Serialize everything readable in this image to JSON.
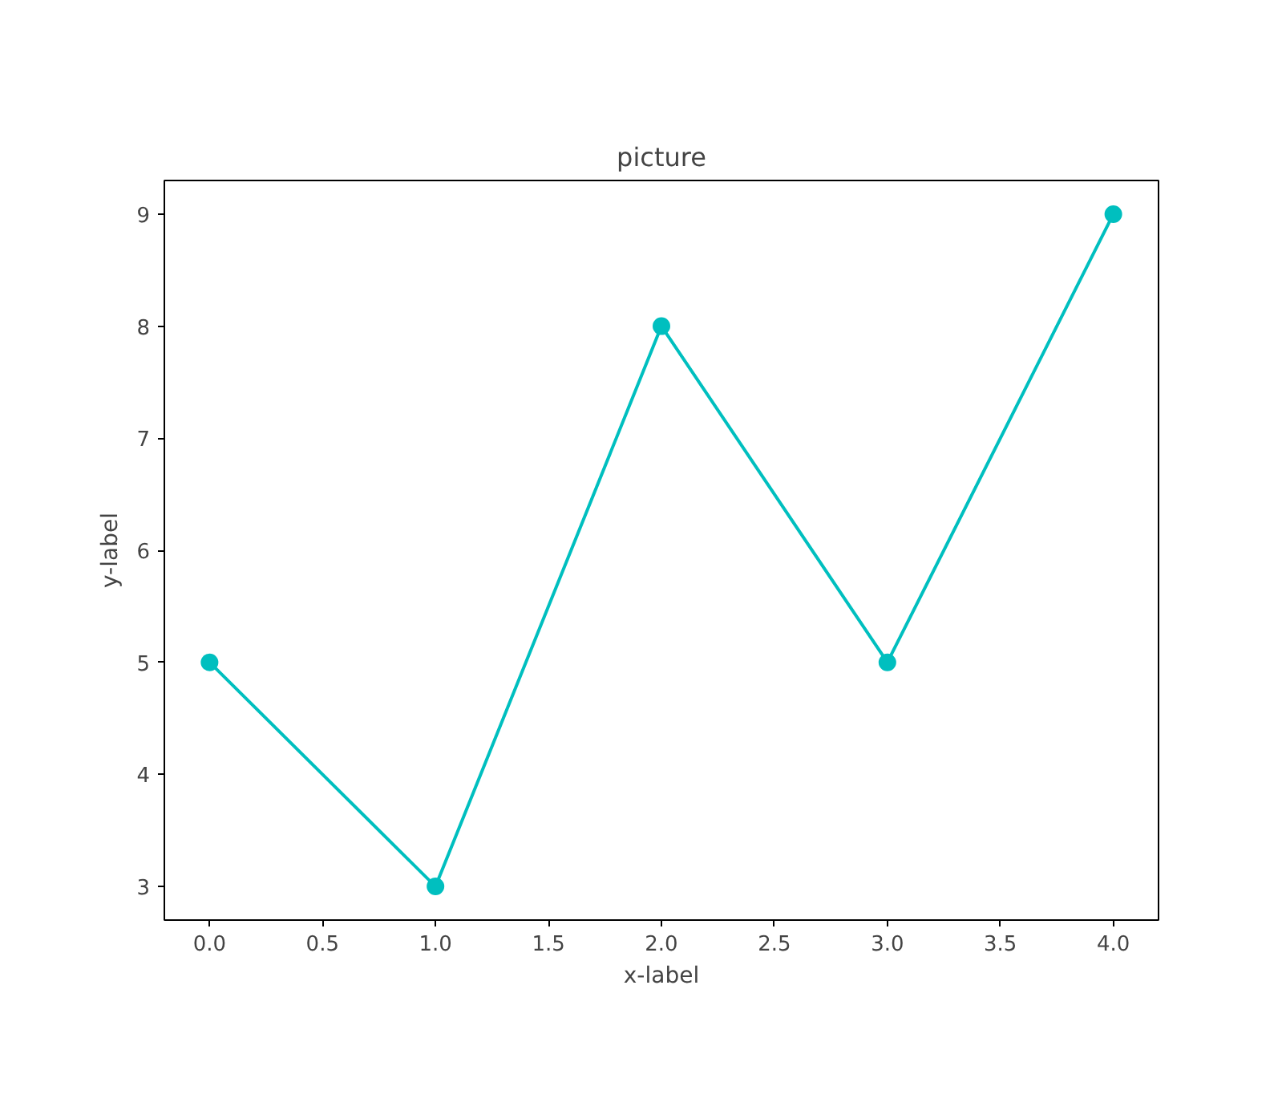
{
  "chart_data": {
    "type": "line",
    "title": "picture",
    "xlabel": "x-label",
    "ylabel": "y-label",
    "x": [
      0,
      1,
      2,
      3,
      4
    ],
    "series": [
      {
        "color": "#00bfbf",
        "values": [
          5,
          3,
          8,
          5,
          9
        ]
      }
    ],
    "xlim": [
      -0.2,
      4.2
    ],
    "ylim": [
      2.7,
      9.3
    ],
    "xticks": [
      {
        "value": 0,
        "label": "0.0"
      },
      {
        "value": 0.5,
        "label": "0.5"
      },
      {
        "value": 1,
        "label": "1.0"
      },
      {
        "value": 1.5,
        "label": "1.5"
      },
      {
        "value": 2,
        "label": "2.0"
      },
      {
        "value": 2.5,
        "label": "2.5"
      },
      {
        "value": 3,
        "label": "3.0"
      },
      {
        "value": 3.5,
        "label": "3.5"
      },
      {
        "value": 4,
        "label": "4.0"
      }
    ],
    "yticks": [
      3,
      4,
      5,
      6,
      7,
      8,
      9
    ],
    "marker": "circle"
  }
}
